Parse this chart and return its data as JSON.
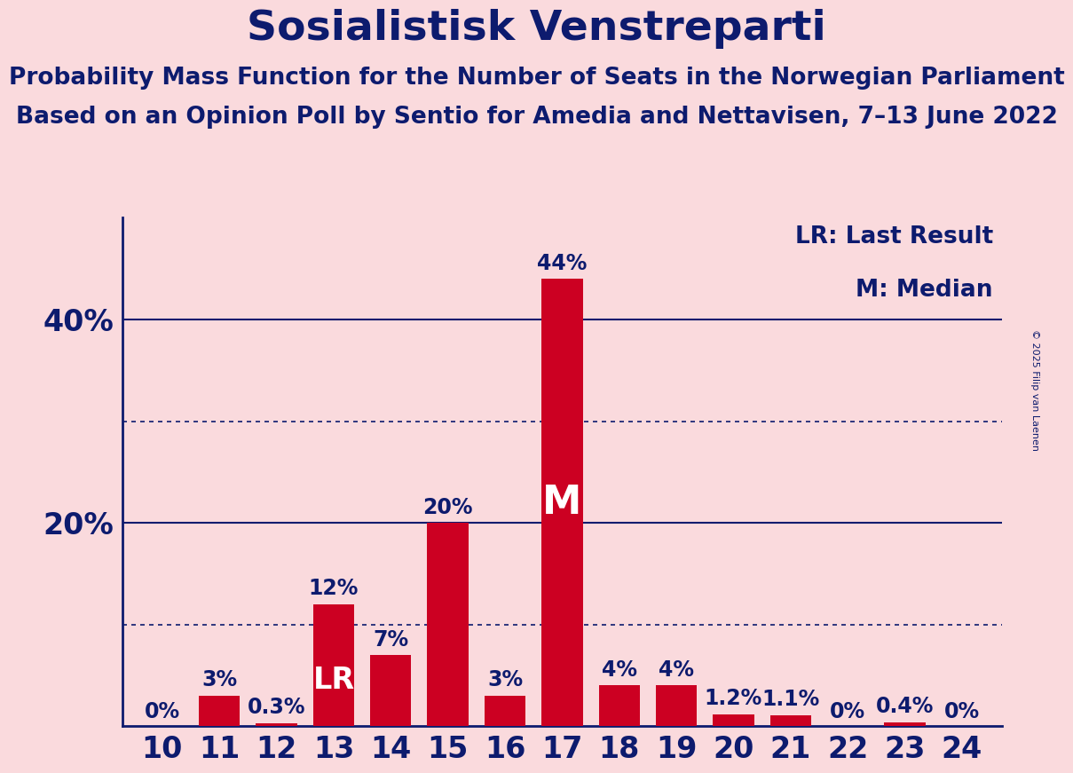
{
  "seats": [
    10,
    11,
    12,
    13,
    14,
    15,
    16,
    17,
    18,
    19,
    20,
    21,
    22,
    23,
    24
  ],
  "probabilities": [
    0.0,
    3.0,
    0.3,
    12.0,
    7.0,
    20.0,
    3.0,
    44.0,
    4.0,
    4.0,
    1.2,
    1.1,
    0.0,
    0.4,
    0.0
  ],
  "bar_color": "#CC0022",
  "background_color": "#FADADD",
  "text_color": "#0D1B6E",
  "title": "Sosialistisk Venstreparti",
  "subtitle1": "Probability Mass Function for the Number of Seats in the Norwegian Parliament",
  "subtitle2": "Based on an Opinion Poll by Sentio for Amedia and Nettavisen, 7–13 June 2022",
  "legend_lr": "LR: Last Result",
  "legend_m": "M: Median",
  "lr_seat": 13,
  "median_seat": 17,
  "ylim": [
    0,
    50
  ],
  "solid_gridlines": [
    20.0,
    40.0
  ],
  "dotted_gridlines": [
    10.0,
    30.0
  ],
  "bar_labels": [
    "0%",
    "3%",
    "0.3%",
    "12%",
    "7%",
    "20%",
    "3%",
    "44%",
    "4%",
    "4%",
    "1.2%",
    "1.1%",
    "0%",
    "0.4%",
    "0%"
  ],
  "copyright_text": "© 2025 Filip van Laenen",
  "title_fontsize": 34,
  "subtitle_fontsize": 19,
  "axis_label_fontsize": 24,
  "tick_fontsize": 24,
  "bar_label_fontsize": 17,
  "legend_fontsize": 19,
  "lr_label_fontsize": 24,
  "m_label_fontsize": 32,
  "copyright_fontsize": 8
}
